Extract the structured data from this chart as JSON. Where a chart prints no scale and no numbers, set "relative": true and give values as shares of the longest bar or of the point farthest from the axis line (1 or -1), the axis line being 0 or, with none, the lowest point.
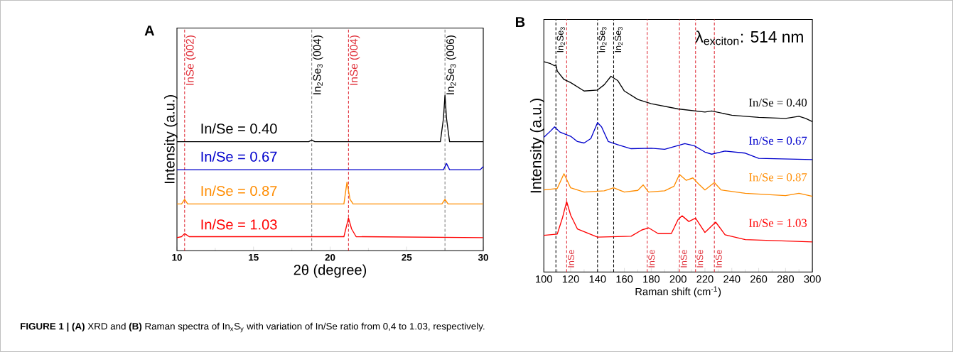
{
  "chart_data": [
    {
      "type": "line",
      "title": "A",
      "xlabel": "2θ (degree)",
      "ylabel": "Intensity (a.u.)",
      "relative": true,
      "xlim": [
        10,
        30
      ],
      "xticks": [
        10,
        15,
        20,
        25,
        30
      ],
      "series": [
        {
          "name": "In/Se = 0.40",
          "color": "#000000",
          "x": [
            10,
            18.6,
            18.8,
            19.0,
            27.2,
            27.4,
            27.5,
            27.6,
            27.8,
            30
          ],
          "values": [
            0.7,
            0.7,
            0.71,
            0.7,
            0.7,
            0.85,
            1.0,
            0.85,
            0.7,
            0.7
          ]
        },
        {
          "name": "In/Se = 0.67",
          "color": "#0000cc",
          "x": [
            10,
            27.4,
            27.6,
            27.8,
            29.8,
            30
          ],
          "values": [
            0.52,
            0.52,
            0.56,
            0.52,
            0.52,
            0.54
          ]
        },
        {
          "name": "In/Se = 0.87",
          "color": "#ff8c00",
          "x": [
            10,
            10.3,
            10.5,
            10.7,
            20.9,
            21.1,
            21.3,
            21.5,
            27.3,
            27.5,
            27.7,
            30
          ],
          "values": [
            0.3,
            0.3,
            0.33,
            0.3,
            0.3,
            0.44,
            0.33,
            0.3,
            0.3,
            0.33,
            0.3,
            0.3
          ]
        },
        {
          "name": "In/Se = 1.03",
          "color": "#ff0000",
          "x": [
            10,
            10.3,
            10.5,
            10.8,
            20.9,
            21.1,
            21.2,
            21.4,
            21.7,
            30
          ],
          "values": [
            0.084,
            0.09,
            0.11,
            0.09,
            0.09,
            0.17,
            0.21,
            0.14,
            0.09,
            0.084
          ]
        }
      ],
      "ref_lines": [
        {
          "axis": "x",
          "value": 10.5,
          "label": "InSe (002)",
          "color": "#e0303a",
          "line_style": "dashed"
        },
        {
          "axis": "x",
          "value": 18.8,
          "label": "In$_{2}$Se$_{3}$ (004)",
          "color": "#808080",
          "line_style": "dashed"
        },
        {
          "axis": "x",
          "value": 21.2,
          "label": "InSe (004)",
          "color": "#e0303a",
          "line_style": "dashed"
        },
        {
          "axis": "x",
          "value": 27.5,
          "label": "In$_{2}$Se$_{3}$ (006)",
          "color": "#808080",
          "line_style": "dashed"
        }
      ],
      "annotations": [
        "**FIGURE 1 | (A)** XRD and **(B)** Raman spectra of In$_{x}$S$_{y}$ with variation of In/Se ratio from 0,4 to 1.03, respectively."
      ]
    },
    {
      "type": "line",
      "title": "B",
      "xlabel": "Raman shift (cm$^{-1}$)",
      "ylabel": "Intensity (a.u.)",
      "relative": true,
      "xlim": [
        100,
        300
      ],
      "xticks": [
        100,
        120,
        140,
        160,
        180,
        200,
        220,
        240,
        260,
        280,
        300
      ],
      "series": [
        {
          "name": "In/Se = 0.40",
          "color": "#000000",
          "x": [
            100,
            105,
            108,
            109,
            110,
            115,
            120,
            130,
            140,
            145,
            150,
            155,
            160,
            170,
            180,
            200,
            220,
            225,
            240,
            260,
            280,
            290,
            295,
            300
          ],
          "values": [
            1.0,
            0.99,
            0.98,
            0.985,
            0.955,
            0.915,
            0.9,
            0.86,
            0.865,
            0.89,
            0.93,
            0.91,
            0.86,
            0.82,
            0.8,
            0.775,
            0.76,
            0.765,
            0.745,
            0.735,
            0.73,
            0.74,
            0.73,
            0.715
          ]
        },
        {
          "name": "In/Se = 0.67",
          "color": "#0000cc",
          "x": [
            100,
            105,
            108,
            112,
            120,
            125,
            130,
            135,
            140,
            143,
            148,
            155,
            165,
            180,
            190,
            205,
            212,
            220,
            225,
            235,
            250,
            260,
            300
          ],
          "values": [
            0.64,
            0.67,
            0.69,
            0.665,
            0.645,
            0.62,
            0.613,
            0.634,
            0.71,
            0.69,
            0.62,
            0.605,
            0.586,
            0.588,
            0.583,
            0.61,
            0.6,
            0.57,
            0.56,
            0.575,
            0.565,
            0.54,
            0.534
          ]
        },
        {
          "name": "In/Se = 0.87",
          "color": "#ff8c00",
          "x": [
            100,
            110,
            115,
            120,
            130,
            145,
            152,
            160,
            170,
            174,
            178,
            190,
            197,
            201,
            206,
            211,
            215,
            220,
            227,
            232,
            250,
            280,
            290,
            300
          ],
          "values": [
            0.39,
            0.397,
            0.467,
            0.4,
            0.38,
            0.386,
            0.4,
            0.38,
            0.388,
            0.414,
            0.38,
            0.386,
            0.408,
            0.464,
            0.436,
            0.447,
            0.42,
            0.39,
            0.425,
            0.39,
            0.374,
            0.363,
            0.374,
            0.36
          ]
        },
        {
          "name": "In/Se = 1.03",
          "color": "#ff0000",
          "x": [
            100,
            110,
            114,
            117,
            120,
            125,
            140,
            165,
            173,
            178,
            185,
            195,
            200,
            203,
            208,
            213,
            220,
            228,
            235,
            250,
            300
          ],
          "values": [
            0.174,
            0.18,
            0.26,
            0.335,
            0.27,
            0.205,
            0.166,
            0.17,
            0.2,
            0.21,
            0.183,
            0.183,
            0.25,
            0.267,
            0.24,
            0.256,
            0.188,
            0.237,
            0.177,
            0.154,
            0.143
          ]
        }
      ],
      "ref_lines": [
        {
          "axis": "x",
          "value": 109,
          "label": "In$_{2}$Se$_{3}$",
          "color": "#000000",
          "line_style": "dashed"
        },
        {
          "axis": "x",
          "value": 140,
          "label": "In$_{2}$Se$_{3}$",
          "color": "#000000",
          "line_style": "dashed"
        },
        {
          "axis": "x",
          "value": 152,
          "label": "In$_{2}$Se$_{3}$",
          "color": "#000000",
          "line_style": "dashed"
        },
        {
          "axis": "x",
          "value": 117,
          "label": "InSe",
          "color": "#e0303a",
          "line_style": "dashed"
        },
        {
          "axis": "x",
          "value": 177,
          "label": "InSe",
          "color": "#e0303a",
          "line_style": "dashed"
        },
        {
          "axis": "x",
          "value": 201,
          "label": "InSe",
          "color": "#e0303a",
          "line_style": "dashed"
        },
        {
          "axis": "x",
          "value": 213,
          "label": "InSe",
          "color": "#e0303a",
          "line_style": "dashed"
        },
        {
          "axis": "x",
          "value": 227,
          "label": "InSe",
          "color": "#e0303a",
          "line_style": "dashed"
        }
      ],
      "annotations": [
        "λ$_{exciton}$: 514 nm"
      ]
    }
  ]
}
